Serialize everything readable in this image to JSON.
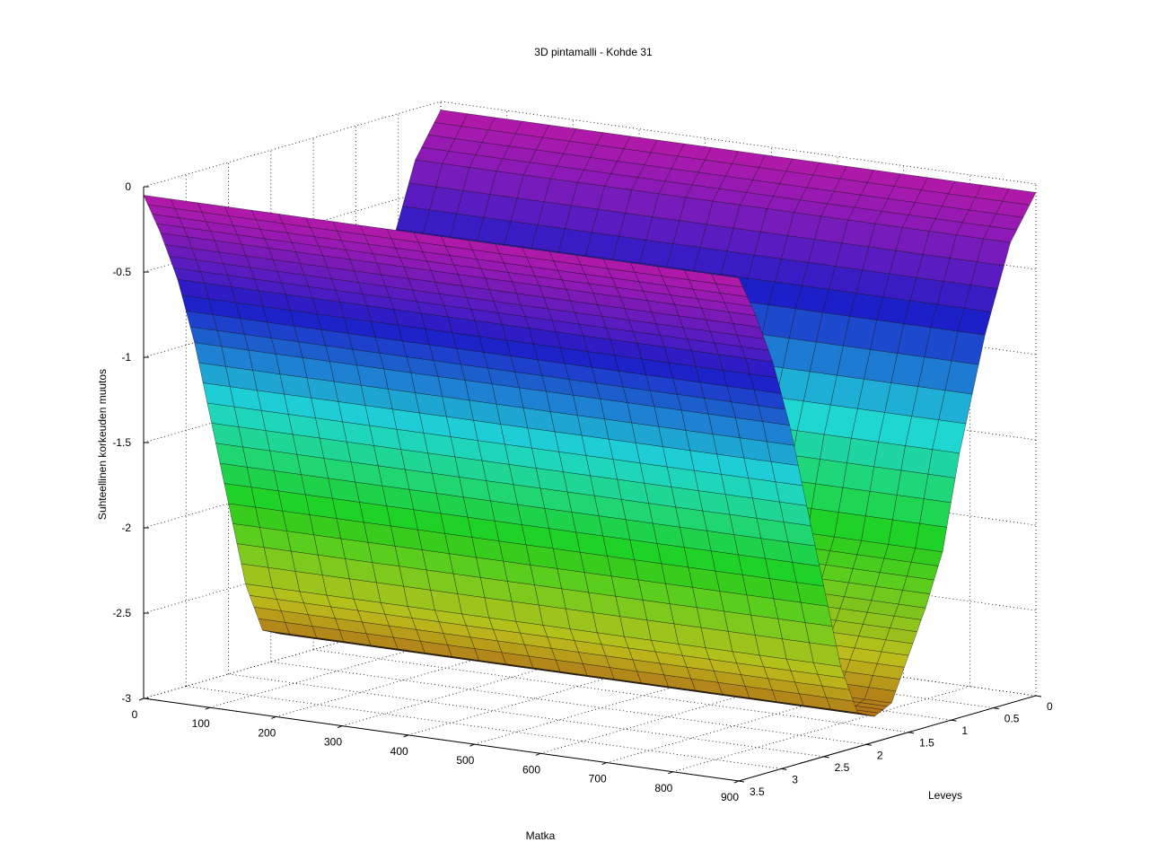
{
  "chart_data": {
    "type": "surface",
    "title": "3D pintamalli - Kohde 31",
    "xlabel": "Matka",
    "ylabel": "Leveys",
    "zlabel": "Suhteellinen korkeuden muutos",
    "xlim": [
      0,
      900
    ],
    "ylim": [
      0,
      3.5
    ],
    "zlim": [
      -3,
      0
    ],
    "x_ticks": [
      0,
      100,
      200,
      300,
      400,
      500,
      600,
      700,
      800,
      900
    ],
    "x_tick_labels": [
      "0",
      "100",
      "200",
      "300",
      "400",
      "500",
      "600",
      "700",
      "800",
      "900"
    ],
    "y_ticks": [
      0,
      0.5,
      1,
      1.5,
      2,
      2.5,
      3,
      3.5
    ],
    "y_tick_labels": [
      "0",
      "0.5",
      "1",
      "1.5",
      "2",
      "2.5",
      "3",
      "3.5"
    ],
    "z_ticks": [
      0,
      -0.5,
      -1,
      -1.5,
      -2,
      -2.5,
      -3
    ],
    "z_tick_labels": [
      "0",
      "-0.5",
      "-1",
      "-1.5",
      "-2",
      "-2.5",
      "-3"
    ],
    "grid": true,
    "colormap": "hsv",
    "surface_profile": {
      "y": [
        0,
        0.3,
        0.6,
        0.9,
        1.1,
        1.3,
        1.5,
        1.7,
        1.9,
        2.1,
        2.3,
        2.5,
        2.7,
        2.9,
        3.1,
        3.3,
        3.5
      ],
      "z": [
        -0.05,
        -0.3,
        -0.8,
        -1.45,
        -2.0,
        -2.3,
        -2.55,
        -2.8,
        -2.85,
        -2.8,
        -2.5,
        -2.0,
        -1.5,
        -1.0,
        -0.6,
        -0.3,
        -0.05
      ]
    },
    "surface_x_range": [
      0,
      900
    ]
  }
}
